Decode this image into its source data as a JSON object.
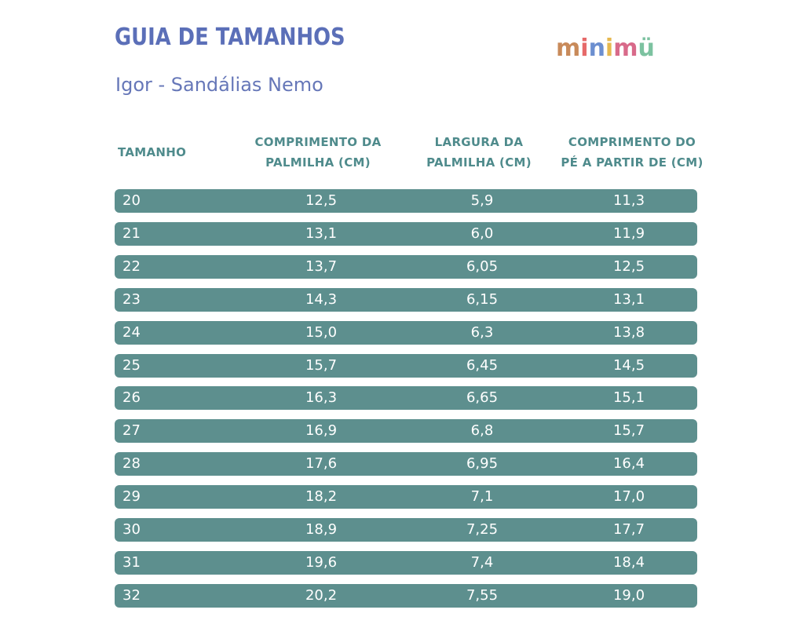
{
  "header": {
    "title": "GUIA DE TAMANHOS",
    "subtitle": "Igor - Sandálias Nemo",
    "logo_letters": [
      "m",
      "i",
      "n",
      "i",
      "m",
      "ü"
    ],
    "logo_colors": [
      "#c88a5a",
      "#e66a6a",
      "#6c8fd0",
      "#e6b84f",
      "#d86a8a",
      "#7cc2a0"
    ]
  },
  "table": {
    "columns": [
      [
        "TAMANHO"
      ],
      [
        "COMPRIMENTO DA",
        "PALMILHA (CM)"
      ],
      [
        "LARGURA DA",
        "PALMILHA (CM)"
      ],
      [
        "COMPRIMENTO DO",
        "PÉ A PARTIR DE (CM)"
      ]
    ],
    "rows": [
      [
        "20",
        "12,5",
        "5,9",
        "11,3"
      ],
      [
        "21",
        "13,1",
        "6,0",
        "11,9"
      ],
      [
        "22",
        "13,7",
        "6,05",
        "12,5"
      ],
      [
        "23",
        "14,3",
        "6,15",
        "13,1"
      ],
      [
        "24",
        "15,0",
        "6,3",
        "13,8"
      ],
      [
        "25",
        "15,7",
        "6,45",
        "14,5"
      ],
      [
        "26",
        "16,3",
        "6,65",
        "15,1"
      ],
      [
        "27",
        "16,9",
        "6,8",
        "15,7"
      ],
      [
        "28",
        "17,6",
        "6,95",
        "16,4"
      ],
      [
        "29",
        "18,2",
        "7,1",
        "17,0"
      ],
      [
        "30",
        "18,9",
        "7,25",
        "17,7"
      ],
      [
        "31",
        "19,6",
        "7,4",
        "18,4"
      ],
      [
        "32",
        "20,2",
        "7,55",
        "19,0"
      ]
    ]
  },
  "colors": {
    "title": "#5b6fb8",
    "header_text": "#4f8b8c",
    "row_bg": "#5d8f8e",
    "row_text": "#ffffff"
  }
}
